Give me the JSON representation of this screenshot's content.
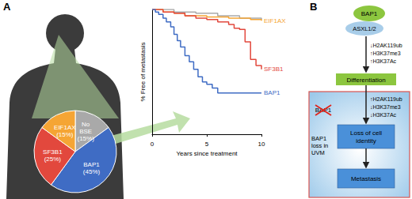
{
  "panel_letters": [
    "A",
    "B"
  ],
  "chart_data": [
    {
      "type": "pie",
      "categories": [
        "No BSE",
        "BAP1",
        "SF3B1",
        "EIF1AX"
      ],
      "values": [
        15,
        45,
        25,
        15
      ],
      "value_labels": [
        "(15%)",
        "(45%)",
        "(25%)",
        "(15%)"
      ],
      "colors": [
        "#a9a9a9",
        "#3f6cc4",
        "#e2483d",
        "#f5a534"
      ],
      "data_labels": true
    },
    {
      "type": "line",
      "x_label": "Years since treatment",
      "y_label": "% Free of metastasis",
      "xlim": [
        0,
        10
      ],
      "xticks": [
        0,
        5,
        10
      ],
      "ylim": [
        0,
        100
      ],
      "tick_labels": "x",
      "line_style": "step",
      "series": [
        {
          "color": "#a9a9a9",
          "x": [
            0,
            2,
            4,
            6,
            8,
            10
          ],
          "values": [
            100,
            98,
            97,
            95,
            93,
            92
          ]
        },
        {
          "name": "EIF1AX",
          "color": "#f5a534",
          "x": [
            0,
            1,
            2,
            3,
            5,
            7,
            9,
            10
          ],
          "values": [
            100,
            98,
            97,
            95,
            94,
            93,
            92,
            91
          ]
        },
        {
          "name": "SF3B1",
          "color": "#e2483d",
          "x": [
            0,
            1,
            2,
            3,
            4,
            5,
            6,
            7,
            7.5,
            8,
            8.5,
            9,
            9.5,
            10
          ],
          "values": [
            100,
            98,
            97,
            95,
            93,
            92,
            90,
            88,
            85,
            84,
            74,
            60,
            55,
            52
          ]
        },
        {
          "name": "BAP1",
          "color": "#3f6cc4",
          "x": [
            0,
            0.3,
            0.6,
            1,
            1.3,
            1.7,
            2,
            2.3,
            2.6,
            3,
            3.4,
            3.8,
            4.2,
            4.6,
            5,
            5.5,
            6,
            7,
            10
          ],
          "values": [
            100,
            98,
            96,
            93,
            90,
            86,
            80,
            75,
            70,
            63,
            58,
            52,
            46,
            42,
            40,
            37,
            33,
            33,
            33
          ]
        }
      ]
    }
  ],
  "diagram": {
    "complex": {
      "top": "BAP1",
      "bottom": "ASXL1/2"
    },
    "marks_normal": [
      "↓H2AK119ub",
      "↑H3K37me3",
      "↑H3K37Ac"
    ],
    "differentiation": "Differentiation",
    "lost_protein": "BAP1",
    "marks_loss": [
      "↑H2AK119ub",
      "↓H3K37me3",
      "↓H3K37Ac"
    ],
    "region_label": "BAP1 loss in UVM",
    "loss_box": "Loss of cell identity",
    "metastasis_box": "Metastasis"
  }
}
